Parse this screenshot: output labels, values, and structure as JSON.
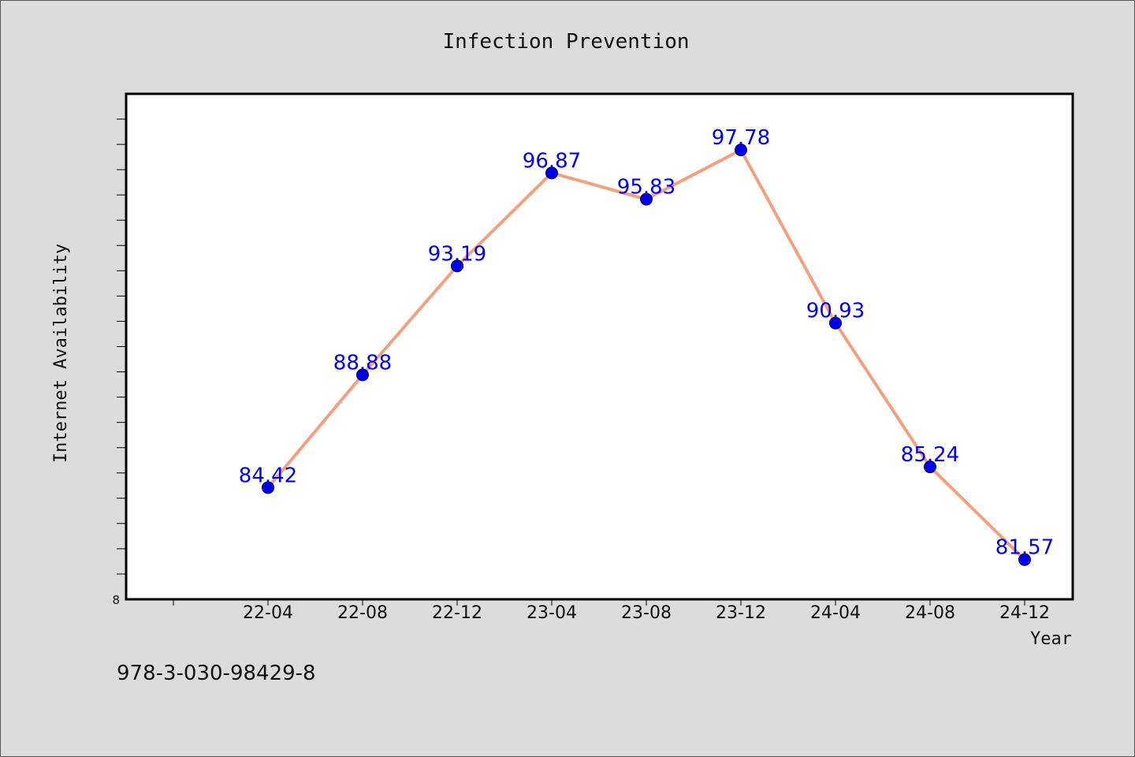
{
  "chart_data": {
    "type": "line",
    "title": "Infection Prevention",
    "xlabel": "Year",
    "ylabel": "Internet Availability",
    "categories": [
      "22-04",
      "22-08",
      "22-12",
      "23-04",
      "23-08",
      "23-12",
      "24-04",
      "24-08",
      "24-12"
    ],
    "values": [
      84.42,
      88.88,
      93.19,
      96.87,
      95.83,
      97.78,
      90.93,
      85.24,
      81.57
    ],
    "data_labels": [
      "84.42",
      "88.88",
      "93.19",
      "96.87",
      "95.83",
      "97.78",
      "90.93",
      "85.24",
      "81.57"
    ],
    "ylim": [
      80,
      100
    ],
    "y_tick_label": "8",
    "grid": false,
    "line_color": "#f4a07f",
    "marker_color": "#0000ee",
    "label_color": "#0000ee"
  },
  "footer": {
    "isbn": "978-3-030-98429-8"
  }
}
